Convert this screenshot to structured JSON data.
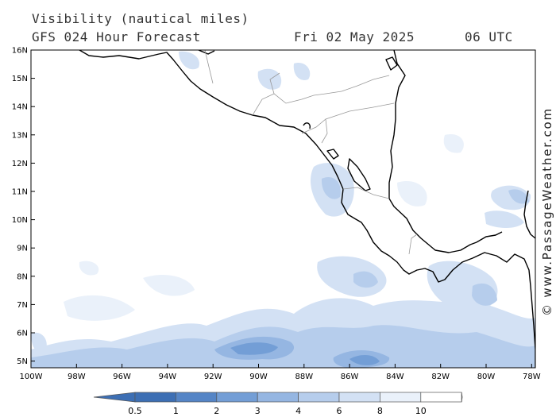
{
  "header": {
    "title": "Visibility (nautical miles)",
    "forecast": "GFS 024 Hour Forecast",
    "date": "Fri 02 May 2025",
    "time": "06 UTC"
  },
  "credit": "© www.PassageWeather.com",
  "lat_labels": [
    "16N",
    "15N",
    "14N",
    "13N",
    "12N",
    "11N",
    "10N",
    "9N",
    "8N",
    "7N",
    "6N",
    "5N"
  ],
  "lon_labels": [
    "100W",
    "98W",
    "96W",
    "94W",
    "92W",
    "90W",
    "88W",
    "86W",
    "84W",
    "82W",
    "80W",
    "78W"
  ],
  "legend": {
    "labels": [
      "0.5",
      "1",
      "2",
      "3",
      "4",
      "6",
      "8",
      "10"
    ],
    "colors": [
      "#3d6fb4",
      "#5585c6",
      "#739ed6",
      "#95b6e2",
      "#b6cdec",
      "#d3e1f4",
      "#eaf1fa",
      "#ffffff"
    ]
  }
}
